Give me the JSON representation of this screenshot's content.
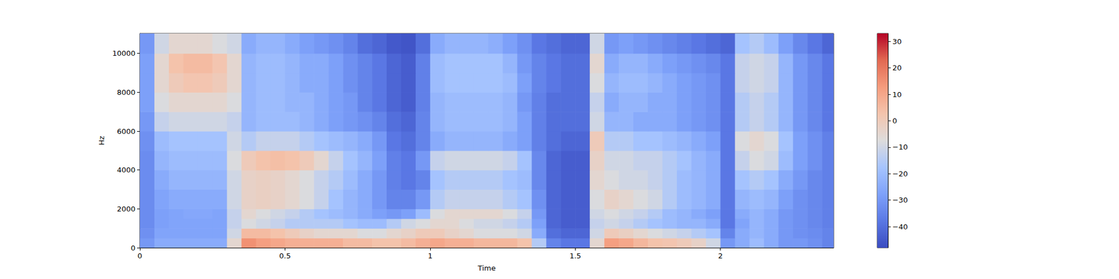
{
  "chart_data": {
    "type": "spectrogram",
    "xlabel": "Time",
    "ylabel": "Hz",
    "xlim": [
      0,
      2.39
    ],
    "xticks": [
      0,
      0.5,
      1,
      1.5,
      2
    ],
    "ylim": [
      0,
      11025
    ],
    "yticks": [
      0,
      2000,
      4000,
      6000,
      8000,
      10000
    ],
    "grid": false,
    "time_bins": [
      0,
      0.05,
      0.1,
      0.15,
      0.2,
      0.25,
      0.3,
      0.35,
      0.4,
      0.45,
      0.5,
      0.55,
      0.6,
      0.65,
      0.7,
      0.75,
      0.8,
      0.85,
      0.9,
      0.95,
      1.0,
      1.05,
      1.1,
      1.15,
      1.2,
      1.25,
      1.3,
      1.35,
      1.4,
      1.45,
      1.5,
      1.55,
      1.6,
      1.65,
      1.7,
      1.75,
      1.8,
      1.85,
      1.9,
      1.95,
      2.0,
      2.05,
      2.1,
      2.15,
      2.2,
      2.25,
      2.3,
      2.35,
      2.4
    ],
    "freq_bins": [
      0,
      500,
      1000,
      1500,
      2000,
      3000,
      4000,
      5000,
      6000,
      7000,
      8000,
      9000,
      10000,
      11025
    ],
    "cells": [
      [
        -30,
        -25,
        -25,
        -25,
        -25,
        -25,
        -5,
        15,
        12,
        10,
        8,
        8,
        8,
        8,
        5,
        5,
        3,
        3,
        5,
        8,
        10,
        8,
        8,
        6,
        6,
        6,
        3,
        -15,
        -35,
        -38,
        -38,
        -5,
        12,
        10,
        6,
        3,
        2,
        0,
        -3,
        -10,
        -30,
        -25,
        -20,
        -25,
        -30,
        -30,
        -32,
        -35
      ],
      [
        -32,
        -27,
        -27,
        -27,
        -27,
        -27,
        -10,
        5,
        5,
        3,
        0,
        -3,
        -5,
        -5,
        -5,
        -8,
        -8,
        -5,
        -3,
        0,
        0,
        -3,
        -5,
        -8,
        -8,
        -8,
        -10,
        -25,
        -40,
        -42,
        -42,
        -10,
        0,
        -2,
        -5,
        -8,
        -10,
        -12,
        -15,
        -18,
        -35,
        -25,
        -22,
        -25,
        -30,
        -32,
        -33,
        -35
      ],
      [
        -33,
        -28,
        -27,
        -27,
        -27,
        -27,
        -12,
        -8,
        -10,
        -12,
        -15,
        -15,
        -15,
        -15,
        -18,
        -20,
        -20,
        -15,
        -10,
        -8,
        -5,
        -5,
        -8,
        -10,
        -10,
        -12,
        -15,
        -28,
        -42,
        -44,
        -44,
        -12,
        -10,
        -12,
        -15,
        -18,
        -20,
        -22,
        -22,
        -25,
        -38,
        -27,
        -22,
        -25,
        -30,
        -32,
        -34,
        -36
      ],
      [
        -33,
        -28,
        -27,
        -26,
        -26,
        -27,
        -12,
        -5,
        -8,
        -10,
        -12,
        -15,
        -18,
        -20,
        -22,
        -25,
        -28,
        -30,
        -28,
        -20,
        -8,
        -5,
        -5,
        -5,
        -5,
        -8,
        -12,
        -30,
        -42,
        -44,
        -44,
        -10,
        -8,
        -10,
        -12,
        -15,
        -20,
        -22,
        -25,
        -28,
        -38,
        -25,
        -22,
        -25,
        -30,
        -32,
        -34,
        -36
      ],
      [
        -33,
        -27,
        -25,
        -25,
        -25,
        -25,
        -10,
        -3,
        -2,
        -3,
        -5,
        -8,
        -12,
        -18,
        -22,
        -25,
        -30,
        -35,
        -35,
        -30,
        -15,
        -12,
        -12,
        -12,
        -12,
        -15,
        -18,
        -32,
        -42,
        -44,
        -44,
        -8,
        -3,
        -5,
        -8,
        -10,
        -15,
        -20,
        -22,
        -25,
        -38,
        -22,
        -20,
        -22,
        -28,
        -32,
        -34,
        -36
      ],
      [
        -33,
        -25,
        -22,
        -22,
        -22,
        -22,
        -10,
        -3,
        -2,
        -3,
        -5,
        -8,
        -12,
        -15,
        -20,
        -25,
        -30,
        -36,
        -38,
        -35,
        -18,
        -15,
        -15,
        -15,
        -15,
        -18,
        -20,
        -34,
        -42,
        -44,
        -44,
        -5,
        -8,
        -10,
        -10,
        -12,
        -15,
        -20,
        -22,
        -25,
        -38,
        -18,
        -15,
        -18,
        -25,
        -30,
        -34,
        -36
      ],
      [
        -33,
        -22,
        -20,
        -20,
        -20,
        -20,
        -8,
        0,
        3,
        4,
        3,
        0,
        -5,
        -12,
        -18,
        -22,
        -28,
        -36,
        -38,
        -30,
        -12,
        -10,
        -10,
        -10,
        -10,
        -12,
        -18,
        -34,
        -42,
        -44,
        -44,
        -3,
        -10,
        -10,
        -12,
        -12,
        -15,
        -18,
        -22,
        -25,
        -38,
        -12,
        -8,
        -10,
        -20,
        -28,
        -32,
        -36
      ],
      [
        -32,
        -20,
        -18,
        -18,
        -18,
        -18,
        -10,
        -15,
        -12,
        -12,
        -12,
        -15,
        -18,
        -20,
        -22,
        -25,
        -30,
        -38,
        -40,
        -35,
        -25,
        -22,
        -22,
        -22,
        -22,
        -25,
        -28,
        -36,
        -40,
        -42,
        -42,
        0,
        -15,
        -15,
        -18,
        -18,
        -20,
        -22,
        -25,
        -28,
        -38,
        -8,
        -5,
        -8,
        -18,
        -28,
        -32,
        -36
      ],
      [
        -30,
        -12,
        -10,
        -10,
        -10,
        -10,
        -12,
        -22,
        -20,
        -20,
        -20,
        -22,
        -25,
        -28,
        -30,
        -32,
        -35,
        -40,
        -42,
        -35,
        -22,
        -20,
        -20,
        -20,
        -20,
        -22,
        -28,
        -36,
        -40,
        -40,
        -40,
        -10,
        -22,
        -22,
        -25,
        -25,
        -25,
        -28,
        -30,
        -32,
        -38,
        -15,
        -12,
        -15,
        -22,
        -30,
        -34,
        -38
      ],
      [
        -28,
        -8,
        -5,
        -5,
        -5,
        -5,
        -8,
        -22,
        -20,
        -20,
        -22,
        -22,
        -25,
        -28,
        -30,
        -35,
        -38,
        -42,
        -44,
        -36,
        -22,
        -20,
        -20,
        -20,
        -20,
        -22,
        -30,
        -36,
        -40,
        -40,
        -40,
        -12,
        -25,
        -22,
        -22,
        -25,
        -25,
        -28,
        -30,
        -32,
        -38,
        -15,
        -12,
        -15,
        -22,
        -30,
        -34,
        -38
      ],
      [
        -28,
        -5,
        0,
        2,
        2,
        0,
        -5,
        -22,
        -20,
        -20,
        -22,
        -25,
        -25,
        -28,
        -32,
        -35,
        -38,
        -42,
        -44,
        -36,
        -20,
        -18,
        -18,
        -18,
        -18,
        -20,
        -28,
        -35,
        -38,
        -40,
        -40,
        -8,
        -22,
        -20,
        -20,
        -22,
        -25,
        -28,
        -30,
        -32,
        -38,
        -12,
        -10,
        -12,
        -22,
        -30,
        -34,
        -38
      ],
      [
        -28,
        -5,
        3,
        5,
        5,
        2,
        -5,
        -22,
        -20,
        -20,
        -22,
        -25,
        -25,
        -28,
        -32,
        -35,
        -38,
        -42,
        -44,
        -36,
        -20,
        -18,
        -18,
        -18,
        -18,
        -22,
        -30,
        -35,
        -38,
        -40,
        -40,
        -5,
        -25,
        -22,
        -22,
        -25,
        -28,
        -30,
        -32,
        -34,
        -38,
        -12,
        -10,
        -12,
        -22,
        -30,
        -34,
        -38
      ],
      [
        -30,
        -10,
        -5,
        -5,
        -5,
        -8,
        -10,
        -25,
        -22,
        -22,
        -25,
        -28,
        -30,
        -32,
        -35,
        -40,
        -42,
        -45,
        -46,
        -40,
        -25,
        -22,
        -22,
        -22,
        -24,
        -28,
        -32,
        -38,
        -40,
        -42,
        -42,
        -10,
        -30,
        -28,
        -30,
        -32,
        -34,
        -36,
        -38,
        -40,
        -42,
        -18,
        -15,
        -20,
        -28,
        -34,
        -38,
        -42
      ]
    ],
    "colorbar": {
      "range": [
        -48,
        33
      ],
      "ticks": [
        {
          "value": -40,
          "label": "−40"
        },
        {
          "value": -30,
          "label": "−30"
        },
        {
          "value": -20,
          "label": "−20"
        },
        {
          "value": -10,
          "label": "−10"
        },
        0,
        10,
        20,
        30
      ]
    }
  }
}
